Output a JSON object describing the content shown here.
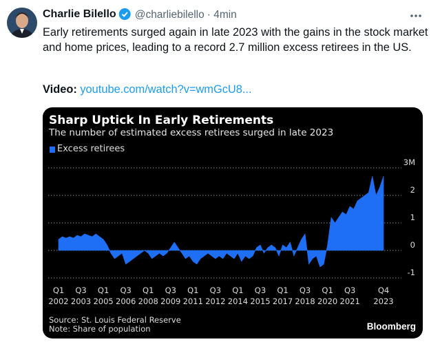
{
  "tweet": {
    "author": "Charlie Bilello",
    "handle": "@charliebilello",
    "time": "· 4min",
    "text": "Early retirements surged again in late 2023 with the gains in the stock market and home prices, leading to a record 2.7 million excess retirees in the US.",
    "video_label": "Video:",
    "video_link": "youtube.com/watch?v=wmGcU8..."
  },
  "chart_data": {
    "type": "area",
    "title": "Sharp Uptick In Early Retirements",
    "subtitle": "The number of estimated excess retirees surged in late 2023",
    "categories": [
      "Q1\n2002",
      null,
      null,
      null,
      null,
      null,
      "Q3\n2003",
      null,
      null,
      null,
      null,
      null,
      "Q1\n2005",
      null,
      null,
      null,
      null,
      null,
      "Q3\n2006",
      null,
      null,
      null,
      null,
      null,
      "Q1\n2008",
      null,
      null,
      null,
      null,
      null,
      "Q3\n2009",
      null,
      null,
      null,
      null,
      null,
      "Q1\n2011",
      null,
      null,
      null,
      null,
      null,
      "Q3\n2012",
      null,
      null,
      null,
      null,
      null,
      "Q1\n2014",
      null,
      null,
      null,
      null,
      null,
      "Q3\n2015",
      null,
      null,
      null,
      null,
      null,
      "Q1\n2017",
      null,
      null,
      null,
      null,
      null,
      "Q3\n2018",
      null,
      null,
      null,
      null,
      null,
      "Q1\n2020",
      null,
      null,
      null,
      null,
      null,
      "Q3\n2021",
      null,
      null,
      null,
      null,
      null,
      null,
      null,
      null,
      "Q4\n2023"
    ],
    "series": [
      {
        "name": "Excess retirees",
        "color": "#1e6ff5",
        "values": [
          0.4,
          0.5,
          0.45,
          0.5,
          0.45,
          0.55,
          0.5,
          0.6,
          0.55,
          0.5,
          0.6,
          0.5,
          0.4,
          0.2,
          -0.1,
          -0.3,
          -0.2,
          -0.1,
          -0.5,
          -0.4,
          -0.3,
          -0.2,
          -0.1,
          0,
          -0.1,
          -0.3,
          -0.2,
          -0.1,
          -0.2,
          -0.1,
          0.1,
          0.3,
          0.1,
          -0.1,
          -0.3,
          -0.2,
          -0.4,
          -0.5,
          -0.3,
          -0.2,
          -0.1,
          -0.2,
          -0.3,
          -0.2,
          -0.3,
          -0.1,
          -0.2,
          -0.3,
          -0.1,
          -0.4,
          -0.2,
          -0.3,
          -0.2,
          0.1,
          0.2,
          -0.1,
          0.1,
          0.2,
          0.1,
          -0.2,
          0.2,
          0.1,
          0.3,
          -0.2,
          0.1,
          0.4,
          0.6,
          -0.5,
          -0.3,
          -0.2,
          -0.6,
          -0.5,
          0.2,
          1.2,
          1.0,
          1.2,
          1.4,
          1.3,
          1.6,
          1.5,
          1.8,
          1.9,
          2.0,
          2.1,
          2.7,
          2.0,
          2.3,
          2.7
        ]
      }
    ],
    "ylim": [
      -1.2,
      3.2
    ],
    "yticks": [
      -1,
      0,
      1,
      2,
      {
        "value": 3,
        "label": "3M"
      }
    ],
    "grid": true,
    "source": "Source: St. Louis Federal Reserve",
    "note": "Note: Share of population",
    "brand": "Bloomberg"
  }
}
